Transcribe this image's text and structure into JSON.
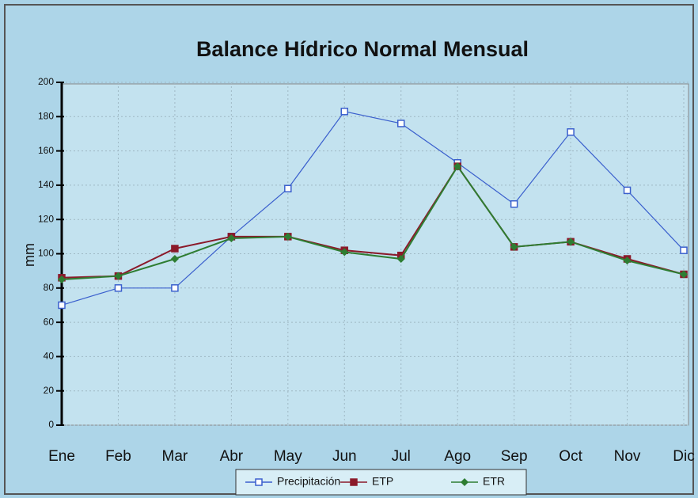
{
  "chart_data": {
    "type": "line",
    "title": "Balance Hídrico Normal Mensual",
    "y_label": "mm",
    "categories": [
      "Ene",
      "Feb",
      "Mar",
      "Abr",
      "May",
      "Jun",
      "Jul",
      "Ago",
      "Sep",
      "Oct",
      "Nov",
      "Dic"
    ],
    "series": [
      {
        "name": "Precipitación",
        "color": "#3a5fcd",
        "marker": "square-open",
        "values": [
          70,
          80,
          80,
          110,
          138,
          183,
          176,
          153,
          129,
          171,
          137,
          102
        ]
      },
      {
        "name": "ETP",
        "color": "#8b1a2a",
        "marker": "square",
        "values": [
          86,
          87,
          103,
          110,
          110,
          102,
          99,
          151,
          104,
          107,
          97,
          88
        ]
      },
      {
        "name": "ETR",
        "color": "#2e7d32",
        "marker": "diamond",
        "values": [
          85,
          87,
          97,
          109,
          110,
          101,
          97,
          151,
          104,
          107,
          96,
          88
        ]
      }
    ],
    "ylim": [
      0,
      200
    ],
    "yticks": [
      0,
      20,
      40,
      60,
      80,
      100,
      120,
      140,
      160,
      180,
      200
    ],
    "grid": true,
    "legend": "bottom"
  }
}
